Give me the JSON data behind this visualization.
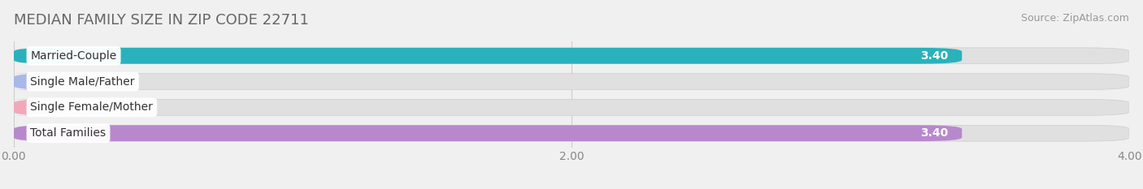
{
  "title": "MEDIAN FAMILY SIZE IN ZIP CODE 22711",
  "source": "Source: ZipAtlas.com",
  "categories": [
    "Married-Couple",
    "Single Male/Father",
    "Single Female/Mother",
    "Total Families"
  ],
  "values": [
    3.4,
    0.0,
    0.0,
    3.4
  ],
  "bar_colors": [
    "#29b2bc",
    "#a8b8e8",
    "#f2a8b8",
    "#b888cc"
  ],
  "xlim": [
    0,
    4.0
  ],
  "xticks": [
    0.0,
    2.0,
    4.0
  ],
  "xtick_labels": [
    "0.00",
    "2.00",
    "4.00"
  ],
  "bar_height": 0.62,
  "bar_gap": 0.38,
  "value_label_color": "#ffffff",
  "value_label_color_zero": "#666666",
  "title_fontsize": 13,
  "source_fontsize": 9,
  "tick_fontsize": 10,
  "bar_label_fontsize": 10,
  "value_fontsize": 10,
  "background_color": "#f0f0f0",
  "bar_bg_color": "#e0e0e0",
  "bar_bg_border": "#d0d0d0"
}
